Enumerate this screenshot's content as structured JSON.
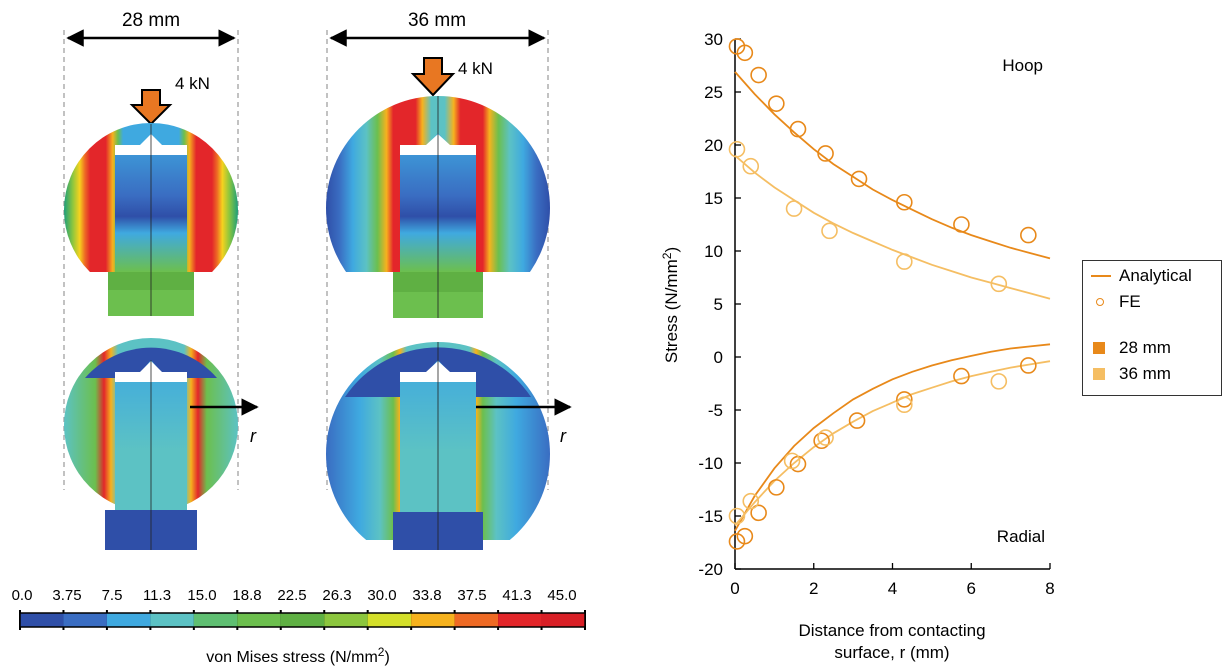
{
  "colors": {
    "s28": "#E8891A",
    "s36": "#F5BE63",
    "arrow_load": "#E87722",
    "outline": "#000000"
  },
  "panels": [
    {
      "width_label": "28 mm",
      "load_label": "4 kN",
      "r_label": "r"
    },
    {
      "width_label": "36 mm",
      "load_label": "4 kN",
      "r_label": "r"
    }
  ],
  "colorbar": {
    "ticks": [
      "0.0",
      "3.75",
      "7.5",
      "11.3",
      "15.0",
      "18.8",
      "22.5",
      "26.3",
      "30.0",
      "33.8",
      "37.5",
      "41.3",
      "45.0"
    ],
    "label_main": "von Mises stress (N/mm",
    "label_sup": "2",
    "label_end": ")",
    "colors": [
      "#2F4FA8",
      "#3A6DC2",
      "#3FA9E0",
      "#5CC2C4",
      "#5FBF72",
      "#6CBF4E",
      "#5FB043",
      "#8CC63E",
      "#D4DF2A",
      "#F6B21E",
      "#EE6A24",
      "#E3262A",
      "#D81F26"
    ]
  },
  "legend": {
    "analytical": "Analytical",
    "fe": "FE",
    "s28": "28 mm",
    "s36": "36 mm"
  },
  "chart_data": {
    "type": "scatter",
    "title": "",
    "xlabel_line1": "Distance from contacting",
    "xlabel_line2": "surface, r (mm)",
    "ylabel_main": "Stress (N/mm",
    "ylabel_sup": "2",
    "ylabel_end": ")",
    "xlim": [
      0,
      8
    ],
    "ylim": [
      -20,
      30
    ],
    "xticks": [
      0,
      2,
      4,
      6,
      8
    ],
    "yticks": [
      -20,
      -15,
      -10,
      -5,
      0,
      5,
      10,
      15,
      20,
      25,
      30
    ],
    "grid": false,
    "legend_position": "right",
    "annotations": {
      "hoop": "Hoop",
      "radial": "Radial"
    },
    "series": [
      {
        "kind": "line",
        "color_key": "s28",
        "group": "hoop",
        "x": [
          0,
          0.5,
          1,
          1.5,
          2,
          2.5,
          3,
          3.5,
          4,
          4.5,
          5,
          5.5,
          6,
          6.5,
          7,
          7.5,
          8
        ],
        "y": [
          26.9,
          24.8,
          22.9,
          21.2,
          19.6,
          18.2,
          17.0,
          15.8,
          14.8,
          13.9,
          13.0,
          12.2,
          11.5,
          10.9,
          10.3,
          9.8,
          9.3
        ]
      },
      {
        "kind": "line",
        "color_key": "s36",
        "group": "hoop",
        "x": [
          0,
          0.5,
          1,
          1.5,
          2,
          2.5,
          3,
          3.5,
          4,
          4.5,
          5,
          5.5,
          6,
          6.5,
          7,
          7.5,
          8
        ],
        "y": [
          19.0,
          17.4,
          16.0,
          14.8,
          13.6,
          12.6,
          11.7,
          10.9,
          10.1,
          9.4,
          8.7,
          8.1,
          7.5,
          7.0,
          6.5,
          6.0,
          5.5
        ]
      },
      {
        "kind": "points",
        "color_key": "s28",
        "group": "hoop",
        "x": [
          0.05,
          0.25,
          0.6,
          1.05,
          1.6,
          2.3,
          3.15,
          4.3,
          5.75,
          7.45
        ],
        "y": [
          29.3,
          28.7,
          26.6,
          23.9,
          21.5,
          19.2,
          16.8,
          14.6,
          12.5,
          11.5
        ]
      },
      {
        "kind": "points",
        "color_key": "s36",
        "group": "hoop",
        "x": [
          0.05,
          0.4,
          1.5,
          2.4,
          4.3,
          6.7
        ],
        "y": [
          19.6,
          18.0,
          14.0,
          11.9,
          9.0,
          6.9
        ]
      },
      {
        "kind": "line",
        "color_key": "s28",
        "group": "radial",
        "x": [
          0,
          0.5,
          1,
          1.5,
          2,
          2.5,
          3,
          3.5,
          4,
          4.5,
          5,
          5.5,
          6,
          6.5,
          7,
          7.5,
          8
        ],
        "y": [
          -16.4,
          -13.1,
          -10.5,
          -8.4,
          -6.7,
          -5.3,
          -4.0,
          -3.0,
          -2.1,
          -1.4,
          -0.8,
          -0.3,
          0.1,
          0.5,
          0.8,
          1.0,
          1.2
        ]
      },
      {
        "kind": "line",
        "color_key": "s36",
        "group": "radial",
        "x": [
          0,
          0.5,
          1,
          1.5,
          2,
          2.5,
          3,
          3.5,
          4,
          4.5,
          5,
          5.5,
          6,
          6.5,
          7,
          7.5,
          8
        ],
        "y": [
          -15.9,
          -13.7,
          -11.7,
          -10.0,
          -8.5,
          -7.2,
          -6.1,
          -5.1,
          -4.3,
          -3.5,
          -2.9,
          -2.3,
          -1.8,
          -1.4,
          -1.0,
          -0.7,
          -0.4
        ]
      },
      {
        "kind": "points",
        "color_key": "s28",
        "group": "radial",
        "x": [
          0.05,
          0.25,
          0.6,
          1.05,
          1.6,
          2.2,
          3.1,
          4.3,
          5.75,
          7.45
        ],
        "y": [
          -17.4,
          -16.9,
          -14.7,
          -12.3,
          -10.1,
          -7.9,
          -6.0,
          -4.0,
          -1.8,
          -0.8
        ]
      },
      {
        "kind": "points",
        "color_key": "s36",
        "group": "radial",
        "x": [
          0.05,
          0.4,
          1.45,
          2.3,
          4.3,
          6.7
        ],
        "y": [
          -15.0,
          -13.6,
          -9.8,
          -7.6,
          -4.5,
          -2.3
        ]
      }
    ]
  }
}
